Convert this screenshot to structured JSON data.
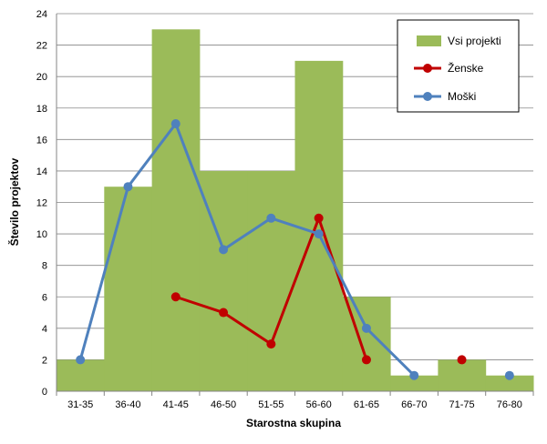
{
  "chart_data": {
    "type": "bar",
    "title": "",
    "xlabel": "Starostna skupina",
    "ylabel": "Število projektov",
    "ylim": [
      0,
      24
    ],
    "yticks": [
      0,
      2,
      4,
      6,
      8,
      10,
      12,
      14,
      16,
      18,
      20,
      22,
      24
    ],
    "grid": true,
    "legend_position": "top-right",
    "categories": [
      "31-35",
      "36-40",
      "41-45",
      "46-50",
      "51-55",
      "56-60",
      "61-65",
      "66-70",
      "71-75",
      "76-80"
    ],
    "series": [
      {
        "name": "Vsi projekti",
        "type": "bar",
        "color": "#9bbb59",
        "values": [
          2,
          13,
          23,
          14,
          14,
          21,
          6,
          1,
          2,
          1
        ]
      },
      {
        "name": "Ženske",
        "type": "line",
        "color": "#c00000",
        "values": [
          null,
          null,
          6,
          5,
          3,
          11,
          2,
          null,
          2,
          null
        ]
      },
      {
        "name": "Moški",
        "type": "line",
        "color": "#4f81bd",
        "values": [
          2,
          13,
          17,
          9,
          11,
          10,
          4,
          1,
          null,
          1
        ]
      }
    ]
  }
}
